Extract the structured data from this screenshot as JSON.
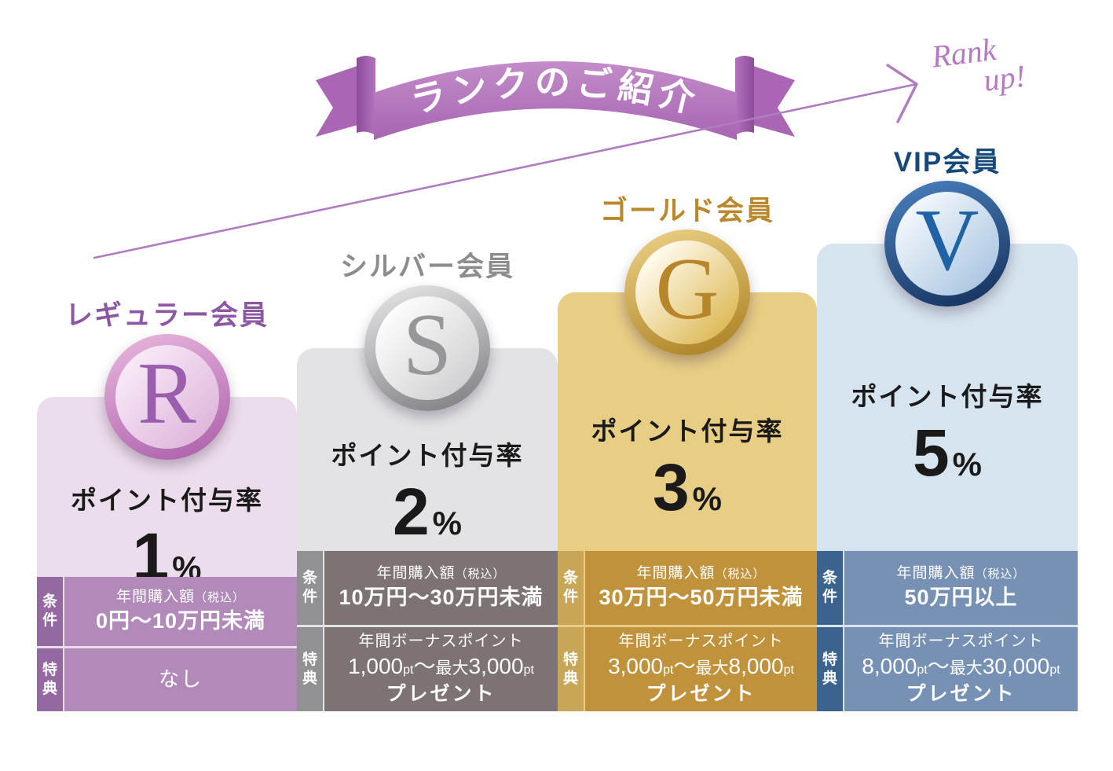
{
  "header": {
    "ribbon_title": "ランクのご紹介",
    "ribbon_color_main": "#b87fc3",
    "ribbon_color_dark": "#8d4b98",
    "ribbon_color_tail": "#aa66b5",
    "rank_up_line1": "Rank",
    "rank_up_line2": "up!",
    "rank_up_color": "#b679c2",
    "arrow_color": "#b07cc0"
  },
  "tiers": [
    {
      "name": "レギュラー会員",
      "badge_letter": "R",
      "rate_label": "ポイント付与率",
      "rate_value": "1",
      "rate_unit": "%",
      "condition": {
        "label": "条件",
        "title": "年間購入額",
        "note": "（税込）",
        "value": "0円～10万円未満"
      },
      "benefit": {
        "label": "特典",
        "value": "なし"
      },
      "colors": {
        "panel": "#ecddec",
        "side": "#9469a1",
        "cell": "#b18aba",
        "title": "#8d58a3",
        "ring1": "#eab9de",
        "ring2": "#aa5da9",
        "inner1": "#f8e9f6",
        "inner2": "#ddb4da",
        "letter": "#9b5dad"
      }
    },
    {
      "name": "シルバー会員",
      "badge_letter": "S",
      "rate_label": "ポイント付与率",
      "rate_value": "2",
      "rate_unit": "%",
      "condition": {
        "label": "条件",
        "title": "年間購入額",
        "note": "（税込）",
        "value": "10万円～30万円未満"
      },
      "benefit": {
        "label": "特典",
        "line1": "年間ボーナスポイント",
        "segments": [
          {
            "t": "1,000",
            "s": "lg"
          },
          {
            "t": "pt",
            "s": "sm"
          },
          {
            "t": "～",
            "s": "lg"
          },
          {
            "t": "最大",
            "s": "md"
          },
          {
            "t": "3,000",
            "s": "lg"
          },
          {
            "t": "pt",
            "s": "sm"
          }
        ],
        "line3": "プレゼント"
      },
      "colors": {
        "panel": "#e3e3e5",
        "side": "#919193",
        "cell": "#7d7372",
        "title": "#8c8c8e",
        "ring1": "#e9e9eb",
        "ring2": "#7b7b7d",
        "inner1": "#fcfcfc",
        "inner2": "#cfcfd1",
        "letter": "#97979b"
      }
    },
    {
      "name": "ゴールド会員",
      "badge_letter": "G",
      "rate_label": "ポイント付与率",
      "rate_value": "3",
      "rate_unit": "%",
      "condition": {
        "label": "条件",
        "title": "年間購入額",
        "note": "（税込）",
        "value": "30万円～50万円未満"
      },
      "benefit": {
        "label": "特典",
        "line1": "年間ボーナスポイント",
        "segments": [
          {
            "t": "3,000",
            "s": "lg"
          },
          {
            "t": "pt",
            "s": "sm"
          },
          {
            "t": "～",
            "s": "lg"
          },
          {
            "t": "最大",
            "s": "md"
          },
          {
            "t": "8,000",
            "s": "lg"
          },
          {
            "t": "pt",
            "s": "sm"
          }
        ],
        "line3": "プレゼント"
      },
      "colors": {
        "panel": "#e8cd85",
        "side": "#c9a656",
        "cell": "#c0923c",
        "title": "#b9882a",
        "ring1": "#eed389",
        "ring2": "#a87d1e",
        "inner1": "#fffbee",
        "inner2": "#dcb751",
        "letter": "#b8862a"
      }
    },
    {
      "name": "VIP会員",
      "badge_letter": "V",
      "rate_label": "ポイント付与率",
      "rate_value": "5",
      "rate_unit": "%",
      "condition": {
        "label": "条件",
        "title": "年間購入額",
        "note": "（税込）",
        "value": "50万円以上"
      },
      "benefit": {
        "label": "特典",
        "line1": "年間ボーナスポイント",
        "segments": [
          {
            "t": "8,000",
            "s": "lg"
          },
          {
            "t": "pt",
            "s": "sm"
          },
          {
            "t": "～",
            "s": "lg"
          },
          {
            "t": "最大",
            "s": "md"
          },
          {
            "t": "30,000",
            "s": "lg"
          },
          {
            "t": "pt",
            "s": "sm"
          }
        ],
        "line3": "プレゼント"
      },
      "colors": {
        "panel": "#d6e4ef",
        "side": "#3a648e",
        "cell": "#7691b4",
        "title": "#16497b",
        "ring1": "#4a82c0",
        "ring2": "#132e58",
        "inner1": "#f2f7fc",
        "inner2": "#a9c5e1",
        "letter": "#1f63a6"
      }
    }
  ]
}
